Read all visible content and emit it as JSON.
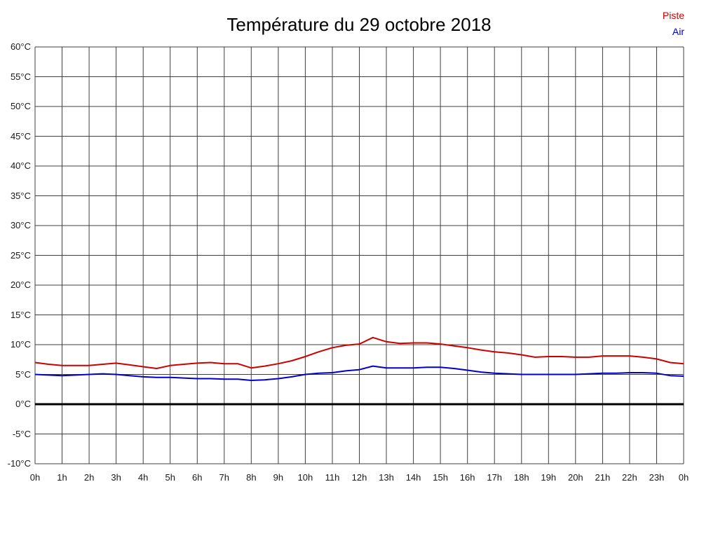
{
  "chart_data": {
    "type": "line",
    "title": "Température du 29 octobre 2018",
    "xlabel": "",
    "ylabel": "",
    "x_range": [
      0,
      24
    ],
    "ylim": [
      -10,
      60
    ],
    "y_step": 5,
    "grid": true,
    "legend_position": "top-right",
    "grid_color": "#3f3f3f",
    "zero_line": {
      "value": 0,
      "color": "#000000",
      "width": 3
    },
    "x_tick_labels": [
      "0h",
      "1h",
      "2h",
      "3h",
      "4h",
      "5h",
      "6h",
      "7h",
      "8h",
      "9h",
      "10h",
      "11h",
      "12h",
      "13h",
      "14h",
      "15h",
      "16h",
      "17h",
      "18h",
      "19h",
      "20h",
      "21h",
      "22h",
      "23h",
      "0h"
    ],
    "y_tick_labels": [
      "60°C",
      "55°C",
      "50°C",
      "45°C",
      "40°C",
      "35°C",
      "30°C",
      "25°C",
      "20°C",
      "15°C",
      "10°C",
      "5°C",
      "0°C",
      "-5°C",
      "-10°C"
    ],
    "x": [
      0,
      0.5,
      1,
      1.5,
      2,
      2.5,
      3,
      3.5,
      4,
      4.5,
      5,
      5.5,
      6,
      6.5,
      7,
      7.5,
      8,
      8.5,
      9,
      9.5,
      10,
      10.5,
      11,
      11.5,
      12,
      12.5,
      13,
      13.5,
      14,
      14.5,
      15,
      15.5,
      16,
      16.5,
      17,
      17.5,
      18,
      18.5,
      19,
      19.5,
      20,
      20.5,
      21,
      21.5,
      22,
      22.5,
      23,
      23.5,
      24
    ],
    "series": [
      {
        "name": "Piste",
        "color": "#cc0000",
        "values": [
          7.0,
          6.7,
          6.5,
          6.5,
          6.5,
          6.7,
          6.9,
          6.6,
          6.3,
          6.0,
          6.5,
          6.7,
          6.9,
          7.0,
          6.8,
          6.8,
          6.1,
          6.4,
          6.8,
          7.3,
          8.0,
          8.8,
          9.5,
          9.9,
          10.1,
          11.2,
          10.5,
          10.2,
          10.3,
          10.3,
          10.1,
          9.8,
          9.5,
          9.1,
          8.8,
          8.6,
          8.3,
          7.9,
          8.0,
          8.0,
          7.9,
          7.9,
          8.1,
          8.1,
          8.1,
          7.9,
          7.6,
          7.0,
          6.8
        ]
      },
      {
        "name": "Air",
        "color": "#0000cc",
        "values": [
          5.0,
          4.9,
          4.8,
          4.9,
          5.0,
          5.1,
          5.0,
          4.8,
          4.6,
          4.5,
          4.5,
          4.4,
          4.3,
          4.3,
          4.2,
          4.2,
          4.0,
          4.1,
          4.3,
          4.6,
          5.0,
          5.2,
          5.3,
          5.6,
          5.8,
          6.4,
          6.1,
          6.1,
          6.1,
          6.2,
          6.2,
          6.0,
          5.7,
          5.4,
          5.2,
          5.1,
          5.0,
          5.0,
          5.0,
          5.0,
          5.0,
          5.1,
          5.2,
          5.2,
          5.3,
          5.3,
          5.2,
          4.8,
          4.7
        ]
      }
    ]
  }
}
